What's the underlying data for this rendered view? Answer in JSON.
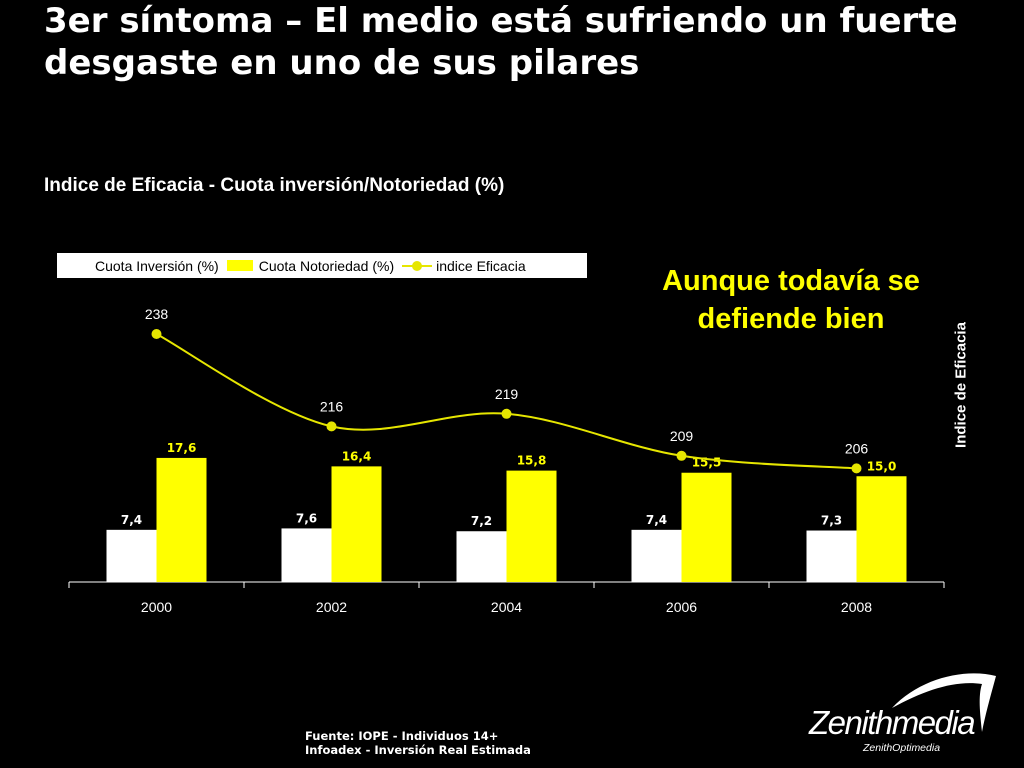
{
  "slide": {
    "title": "3er síntoma – El medio está sufriendo un fuerte desgaste en uno de sus pilares",
    "callout": "Aunque todavía se defiende bien",
    "source_line1": "Fuente: IOPE - Individuos 14+",
    "source_line2": "Infoadex - Inversión Real Estimada",
    "logo_word": "Zenithmedia",
    "logo_sub": "ZenithOptimedia"
  },
  "chart_data": {
    "type": "bar",
    "title": "Indice de Eficacia - Cuota inversión/Notoriedad (%)",
    "categories": [
      "2000",
      "2002",
      "2004",
      "2006",
      "2008"
    ],
    "series": [
      {
        "name": "Cuota Inversión (%)",
        "kind": "bar",
        "color": "#ffffff",
        "values": [
          7.4,
          7.6,
          7.2,
          7.4,
          7.3
        ],
        "labels": [
          "7,4",
          "7,6",
          "7,2",
          "7,4",
          "7,3"
        ]
      },
      {
        "name": "Cuota Notoriedad (%)",
        "kind": "bar",
        "color": "#ffff00",
        "values": [
          17.6,
          16.4,
          15.8,
          15.5,
          15.0
        ],
        "labels": [
          "17,6",
          "16,4",
          "15,8",
          "15,5",
          "15,0"
        ]
      },
      {
        "name": "indice Eficacia",
        "kind": "line",
        "axis": "secondary",
        "color": "#e6e600",
        "values": [
          238,
          216,
          219,
          209,
          206
        ],
        "labels": [
          "238",
          "216",
          "219",
          "209",
          "206"
        ]
      }
    ],
    "y2label": "Indice de Eficacia",
    "legend": "top-left",
    "grid": false
  }
}
